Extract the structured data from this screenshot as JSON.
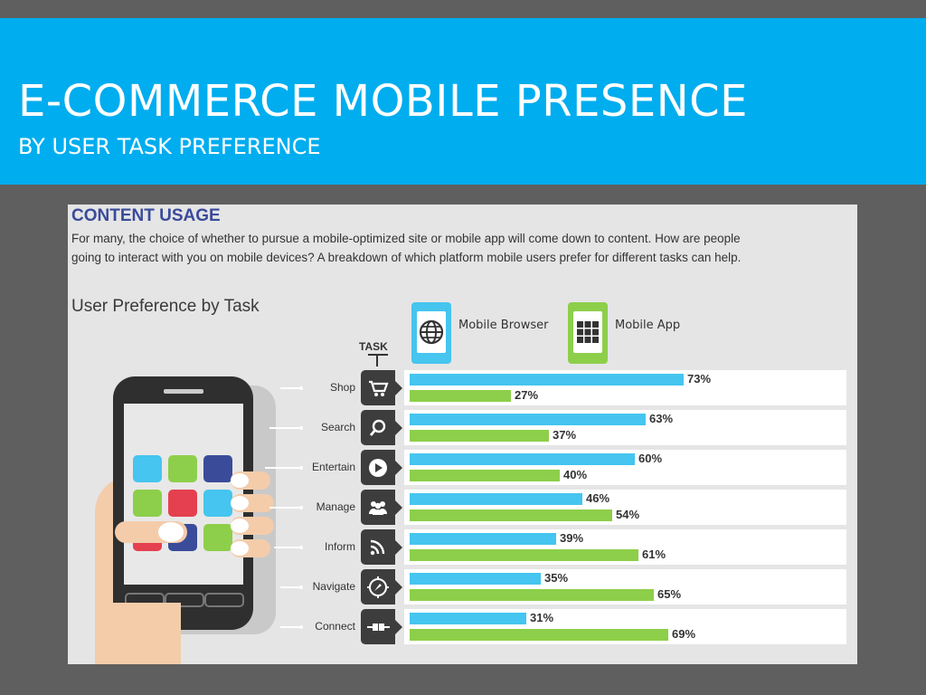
{
  "slide": {
    "title": "E-COMMERCE MOBILE PRESENCE",
    "subtitle": "BY USER TASK PREFERENCE"
  },
  "content": {
    "section_title": "CONTENT USAGE",
    "section_text": "For many, the choice of whether to pursue a mobile-optimized site or mobile app will come down to content. How are people going to interact with you on mobile devices? A breakdown of which platform mobile users prefer for different tasks can help.",
    "task_header": "TASK"
  },
  "colors": {
    "banner": "#00adef",
    "browser": "#45c5ef",
    "app": "#8dcf4a",
    "heading": "#3a4b9a"
  },
  "chart_data": {
    "type": "bar",
    "orientation": "horizontal",
    "title": "User Preference by Task",
    "categories": [
      "Shop",
      "Search",
      "Entertain",
      "Manage",
      "Inform",
      "Navigate",
      "Connect"
    ],
    "category_icons": [
      "cart-icon",
      "magnifier-icon",
      "play-icon",
      "group-icon",
      "rss-icon",
      "compass-icon",
      "plug-icon"
    ],
    "series": [
      {
        "name": "Mobile Browser",
        "values": [
          73,
          63,
          60,
          46,
          39,
          35,
          31
        ],
        "labels": [
          "73%",
          "63%",
          "60%",
          "46%",
          "39%",
          "35%",
          "31%"
        ]
      },
      {
        "name": "Mobile App",
        "values": [
          27,
          37,
          40,
          54,
          61,
          65,
          69
        ],
        "labels": [
          "27%",
          "37%",
          "40%",
          "54%",
          "61%",
          "65%",
          "69%"
        ]
      }
    ],
    "xlim": [
      0,
      100
    ],
    "legend": "top",
    "grid": false
  }
}
